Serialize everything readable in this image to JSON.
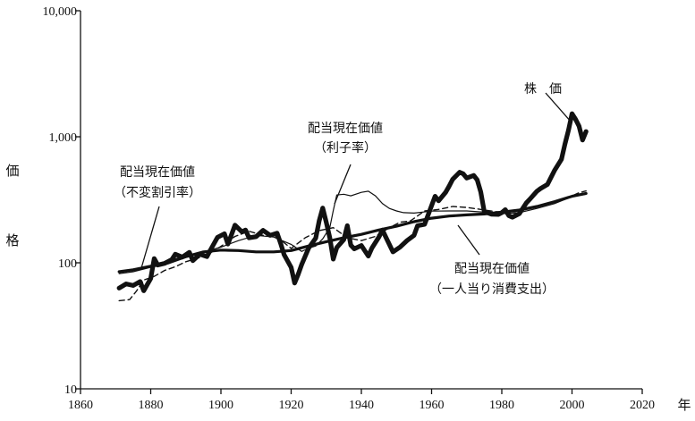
{
  "chart_data": {
    "type": "line",
    "y_scale": "log",
    "grid": false,
    "xlim": [
      1860,
      2020
    ],
    "ylim": [
      10,
      10000
    ],
    "x_ticks": [
      "1860",
      "1880",
      "1900",
      "1920",
      "1940",
      "1960",
      "1980",
      "2000",
      "2020"
    ],
    "y_ticks": [
      "10",
      "100",
      "1,000",
      "10,000"
    ],
    "xlabel": "年",
    "ylabel": [
      "価",
      "格"
    ],
    "series": [
      {
        "name": "株　価",
        "style": "thick",
        "x": [
          1871,
          1873,
          1875,
          1877,
          1878,
          1880,
          1881,
          1882,
          1884,
          1886,
          1887,
          1889,
          1891,
          1892,
          1894,
          1896,
          1897,
          1899,
          1901,
          1902,
          1903,
          1904,
          1906,
          1907,
          1908,
          1910,
          1912,
          1914,
          1916,
          1917,
          1918,
          1920,
          1921,
          1922,
          1923,
          1925,
          1927,
          1928,
          1929,
          1930,
          1931,
          1932,
          1933,
          1935,
          1936,
          1937,
          1938,
          1940,
          1942,
          1943,
          1945,
          1946,
          1947,
          1949,
          1951,
          1953,
          1955,
          1956,
          1958,
          1959,
          1961,
          1962,
          1964,
          1965,
          1966,
          1968,
          1969,
          1970,
          1972,
          1973,
          1974,
          1975,
          1977,
          1979,
          1980,
          1981,
          1982,
          1983,
          1985,
          1987,
          1988,
          1990,
          1991,
          1993,
          1995,
          1997,
          1998,
          1999,
          2000,
          2001,
          2002,
          2003,
          2004
        ],
        "values": [
          63,
          68,
          66,
          71,
          60,
          75,
          108,
          96,
          99,
          106,
          117,
          111,
          121,
          104,
          117,
          112,
          126,
          159,
          170,
          141,
          167,
          199,
          176,
          182,
          158,
          161,
          181,
          165,
          172,
          143,
          116,
          92,
          69,
          81,
          97,
          131,
          157,
          216,
          272,
          209,
          158,
          107,
          132,
          153,
          197,
          138,
          129,
          137,
          113,
          131,
          160,
          182,
          159,
          122,
          133,
          150,
          165,
          197,
          202,
          239,
          337,
          310,
          362,
          405,
          460,
          523,
          509,
          470,
          493,
          455,
          364,
          255,
          243,
          242,
          250,
          264,
          237,
          230,
          245,
          299,
          320,
          370,
          388,
          418,
          539,
          662,
          874,
          1131,
          1525,
          1380,
          1213,
          942,
          1100
        ]
      },
      {
        "name": "配当現在価値（利子率）",
        "style": "thin",
        "x": [
          1871,
          1875,
          1880,
          1885,
          1890,
          1895,
          1900,
          1905,
          1910,
          1915,
          1920,
          1923,
          1925,
          1927,
          1929,
          1931,
          1932,
          1933,
          1935,
          1937,
          1940,
          1942,
          1944,
          1946,
          1948,
          1950,
          1952,
          1955,
          1960,
          1965,
          1970,
          1975,
          1980,
          1985,
          1990,
          1995,
          2000,
          2004
        ],
        "values": [
          82,
          85,
          92,
          98,
          110,
          122,
          133,
          150,
          165,
          160,
          140,
          123,
          131,
          136,
          155,
          190,
          260,
          345,
          350,
          340,
          362,
          370,
          340,
          295,
          270,
          258,
          250,
          248,
          257,
          258,
          258,
          252,
          245,
          250,
          270,
          295,
          335,
          350
        ]
      },
      {
        "name": "配当現在価値（不変割引率）",
        "style": "medium",
        "x": [
          1871,
          1875,
          1880,
          1885,
          1890,
          1895,
          1900,
          1905,
          1910,
          1915,
          1920,
          1925,
          1930,
          1935,
          1940,
          1945,
          1950,
          1955,
          1960,
          1965,
          1970,
          1975,
          1980,
          1985,
          1990,
          1995,
          2000,
          2004
        ],
        "values": [
          85,
          88,
          94,
          102,
          112,
          122,
          126,
          125,
          122,
          122,
          125,
          136,
          147,
          158,
          168,
          182,
          195,
          212,
          226,
          235,
          240,
          244,
          252,
          262,
          280,
          305,
          337,
          355
        ]
      },
      {
        "name": "配当現在価値（一人当り消費支出）",
        "style": "dashed",
        "x": [
          1871,
          1874,
          1876,
          1878,
          1881,
          1884,
          1887,
          1890,
          1893,
          1896,
          1900,
          1904,
          1908,
          1912,
          1916,
          1920,
          1924,
          1928,
          1932,
          1936,
          1940,
          1944,
          1948,
          1951,
          1954,
          1958,
          1962,
          1966,
          1970,
          1974,
          1978,
          1982,
          1986,
          1990,
          1994,
          1998,
          2002,
          2004
        ],
        "values": [
          50,
          51,
          60,
          73,
          78,
          87,
          93,
          102,
          108,
          115,
          135,
          162,
          178,
          165,
          160,
          130,
          158,
          180,
          190,
          158,
          150,
          162,
          190,
          210,
          215,
          258,
          265,
          280,
          275,
          265,
          255,
          250,
          262,
          282,
          300,
          320,
          360,
          372
        ]
      }
    ],
    "annotations": [
      {
        "text": "株　価",
        "lines": [
          "株　価"
        ]
      },
      {
        "text": "配当現在価値（利子率）",
        "lines": [
          "配当現在価値",
          "（利子率）"
        ]
      },
      {
        "text": "配当現在価値（不変割引率）",
        "lines": [
          "配当現在価値",
          "（不変割引率）"
        ]
      },
      {
        "text": "配当現在価値（一人当り消費支出）",
        "lines": [
          "配当現在価値",
          "（一人当り消費支出）"
        ]
      }
    ]
  }
}
